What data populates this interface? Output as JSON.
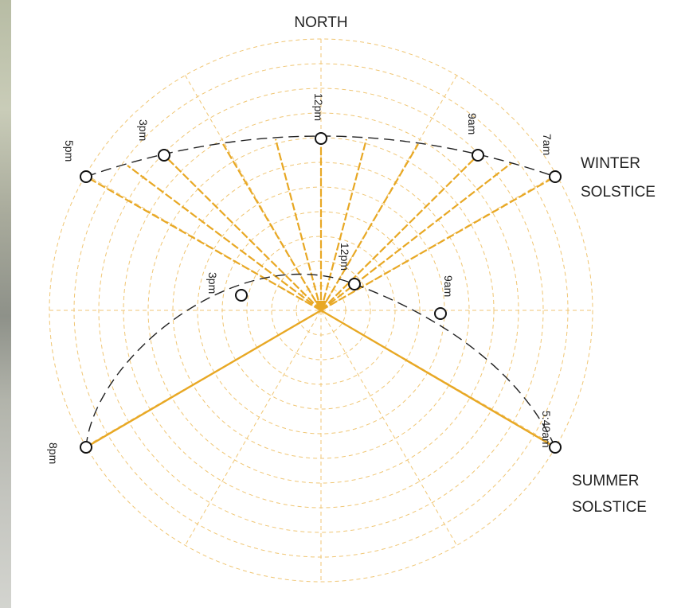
{
  "colors": {
    "grid": "#f0c674",
    "ray": "#e8a824",
    "path": "#222222"
  },
  "labels": {
    "north": "NORTH",
    "winter_line1": "WINTER",
    "winter_line2": "SOLSTICE",
    "summer_line1": "SUMMER",
    "summer_line2": "SOLSTICE"
  },
  "winter_times": {
    "t7am": "7am",
    "t9am": "9am",
    "t12pm": "12pm",
    "t3pm": "3pm",
    "t5pm": "5pm"
  },
  "summer_times": {
    "t540am": "5:40am",
    "t9am": "9am",
    "t12pm": "12pm",
    "t3pm": "3pm",
    "t8pm": "8pm"
  }
}
